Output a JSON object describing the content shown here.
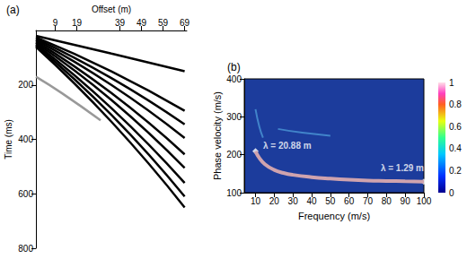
{
  "chart_data": [
    {
      "type": "seismogram",
      "title": "(a)",
      "x_label": "Offset (m)",
      "y_label": "Time (ms)",
      "xlim": [
        0,
        70
      ],
      "xticks": [
        9,
        19,
        39,
        49,
        59,
        69
      ],
      "ylim": [
        0,
        800
      ],
      "yticks": [
        200,
        400,
        600,
        800
      ],
      "series": [
        {
          "color": "#000000",
          "x": [
            0,
            35,
            69
          ],
          "values": [
            20,
            85,
            150
          ]
        },
        {
          "color": "#000000",
          "x": [
            0,
            35,
            69
          ],
          "values": [
            25,
            150,
            295
          ]
        },
        {
          "color": "#000000",
          "x": [
            0,
            35,
            69
          ],
          "values": [
            30,
            175,
            345
          ]
        },
        {
          "color": "#000000",
          "x": [
            0,
            35,
            69
          ],
          "values": [
            35,
            200,
            395
          ]
        },
        {
          "color": "#000000",
          "x": [
            0,
            35,
            69
          ],
          "values": [
            40,
            230,
            455
          ]
        },
        {
          "color": "#000000",
          "x": [
            0,
            35,
            69
          ],
          "values": [
            45,
            255,
            505
          ]
        },
        {
          "color": "#000000",
          "x": [
            0,
            35,
            69
          ],
          "values": [
            50,
            285,
            560
          ]
        },
        {
          "color": "#000000",
          "x": [
            0,
            35,
            69
          ],
          "values": [
            55,
            310,
            610
          ]
        },
        {
          "color": "#000000",
          "x": [
            0,
            35,
            69
          ],
          "values": [
            60,
            335,
            650
          ]
        },
        {
          "color": "#999999",
          "x": [
            0,
            12,
            30
          ],
          "values": [
            170,
            230,
            330
          ]
        }
      ]
    },
    {
      "type": "dispersion",
      "title": "(b)",
      "x_label": "Frequency (m/s)",
      "y_label": "Phase velocity (m/s)",
      "xlim": [
        4,
        100
      ],
      "xticks": [
        10,
        20,
        30,
        40,
        50,
        60,
        70,
        80,
        90,
        100
      ],
      "ylim": [
        100,
        400
      ],
      "yticks": [
        100,
        200,
        300,
        400
      ],
      "series": [
        {
          "color": "#cfa3ae",
          "x": [
            10,
            12,
            15,
            20,
            25,
            30,
            40,
            50,
            60,
            70,
            80,
            90,
            100
          ],
          "values": [
            209,
            192,
            175,
            160,
            152,
            147,
            141,
            137,
            134,
            132,
            131,
            130,
            129
          ]
        },
        {
          "color": "#5ab4ea",
          "x": [
            10,
            12,
            14
          ],
          "values": [
            320,
            275,
            245
          ]
        },
        {
          "color": "#5ab4ea",
          "x": [
            22,
            35,
            50
          ],
          "values": [
            268,
            258,
            250
          ]
        }
      ],
      "annotations": [
        {
          "text": "λ = 20.88 m",
          "x": 10,
          "y": 209
        },
        {
          "text": "λ = 1.29 m",
          "x": 100,
          "y": 129
        }
      ],
      "colorbar": {
        "range": [
          0,
          1
        ],
        "ticks": [
          0,
          0.2,
          0.4,
          0.6,
          0.8,
          1
        ]
      }
    }
  ]
}
